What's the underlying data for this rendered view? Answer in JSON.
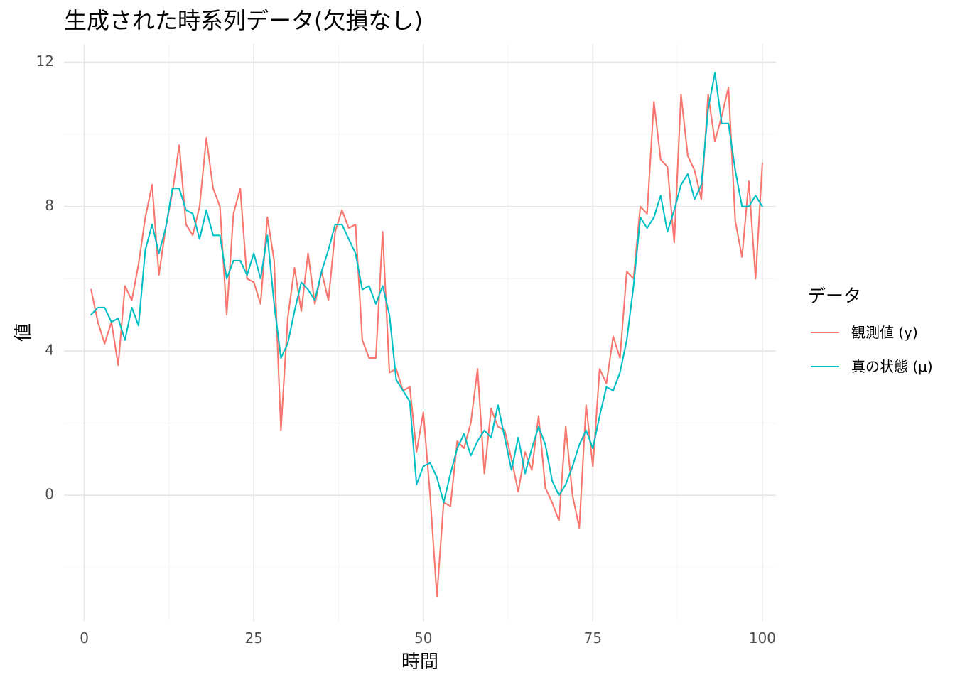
{
  "chart_data": {
    "type": "line",
    "title": "生成された時系列データ(欠損なし)",
    "xlabel": "時間",
    "ylabel": "値",
    "xlim": [
      -3,
      102
    ],
    "ylim": [
      -3.5,
      12.5
    ],
    "x_major_ticks": [
      0,
      25,
      50,
      75,
      100
    ],
    "x_tick_labels": [
      "0",
      "25",
      "50",
      "75",
      "100"
    ],
    "x_minor_ticks": [
      12.5,
      37.5,
      62.5,
      87.5
    ],
    "y_major_ticks": [
      0,
      4,
      8,
      12
    ],
    "y_tick_labels": [
      "0",
      "4",
      "8",
      "12"
    ],
    "y_minor_ticks": [
      -2,
      2,
      6,
      10
    ],
    "grid": true,
    "legend": {
      "title": "データ",
      "position": "right"
    },
    "x": [
      1,
      2,
      3,
      4,
      5,
      6,
      7,
      8,
      9,
      10,
      11,
      12,
      13,
      14,
      15,
      16,
      17,
      18,
      19,
      20,
      21,
      22,
      23,
      24,
      25,
      26,
      27,
      28,
      29,
      30,
      31,
      32,
      33,
      34,
      35,
      36,
      37,
      38,
      39,
      40,
      41,
      42,
      43,
      44,
      45,
      46,
      47,
      48,
      49,
      50,
      51,
      52,
      53,
      54,
      55,
      56,
      57,
      58,
      59,
      60,
      61,
      62,
      63,
      64,
      65,
      66,
      67,
      68,
      69,
      70,
      71,
      72,
      73,
      74,
      75,
      76,
      77,
      78,
      79,
      80,
      81,
      82,
      83,
      84,
      85,
      86,
      87,
      88,
      89,
      90,
      91,
      92,
      93,
      94,
      95,
      96,
      97,
      98,
      99,
      100
    ],
    "series": [
      {
        "name": "観測値 (y)",
        "color": "#F8766D",
        "values": [
          5.7,
          4.8,
          4.2,
          4.8,
          3.6,
          5.8,
          5.4,
          6.4,
          7.7,
          8.6,
          6.1,
          7.4,
          8.4,
          9.7,
          7.5,
          7.2,
          8.0,
          9.9,
          8.5,
          8.0,
          5.0,
          7.8,
          8.5,
          6.0,
          5.9,
          5.3,
          7.7,
          6.5,
          1.8,
          4.9,
          6.3,
          5.1,
          6.7,
          5.3,
          6.2,
          5.4,
          7.3,
          7.9,
          7.4,
          7.5,
          4.3,
          3.8,
          3.8,
          7.3,
          3.4,
          3.5,
          2.9,
          3.0,
          1.2,
          2.3,
          0.0,
          -2.8,
          -0.2,
          -0.3,
          1.5,
          1.3,
          2.0,
          3.5,
          0.6,
          2.4,
          1.9,
          1.8,
          1.0,
          0.1,
          1.2,
          0.7,
          2.2,
          0.2,
          -0.2,
          -0.7,
          1.9,
          0.0,
          -0.9,
          2.5,
          0.8,
          3.5,
          3.1,
          4.4,
          3.8,
          6.2,
          6.0,
          8.0,
          7.8,
          10.9,
          9.3,
          9.1,
          7.0,
          11.1,
          9.4,
          9.0,
          8.2,
          11.1,
          9.8,
          10.5,
          11.3,
          7.6,
          6.6,
          8.7,
          6.0,
          9.2
        ]
      },
      {
        "name": "真の状態 (μ)",
        "color": "#00BFC4",
        "values": [
          5.0,
          5.2,
          5.2,
          4.8,
          4.9,
          4.3,
          5.2,
          4.7,
          6.8,
          7.5,
          6.7,
          7.4,
          8.5,
          8.5,
          7.9,
          7.8,
          7.1,
          7.9,
          7.2,
          7.2,
          6.0,
          6.5,
          6.5,
          6.1,
          6.7,
          6.0,
          7.2,
          5.3,
          3.8,
          4.2,
          5.1,
          5.9,
          5.7,
          5.4,
          6.2,
          6.8,
          7.5,
          7.5,
          7.1,
          6.7,
          5.7,
          5.8,
          5.3,
          5.8,
          5.0,
          3.2,
          2.9,
          2.6,
          0.3,
          0.8,
          0.9,
          0.5,
          -0.2,
          0.6,
          1.3,
          1.7,
          1.1,
          1.5,
          1.8,
          1.6,
          2.5,
          1.6,
          0.7,
          1.6,
          0.6,
          1.3,
          1.9,
          1.4,
          0.4,
          0.0,
          0.3,
          0.8,
          1.4,
          1.8,
          1.3,
          2.2,
          3.0,
          2.9,
          3.4,
          4.3,
          5.8,
          7.7,
          7.4,
          7.7,
          8.3,
          7.3,
          7.9,
          8.6,
          8.9,
          8.2,
          8.6,
          10.7,
          11.7,
          10.3,
          10.3,
          9.0,
          8.0,
          8.0,
          8.3,
          8.0
        ]
      }
    ]
  }
}
